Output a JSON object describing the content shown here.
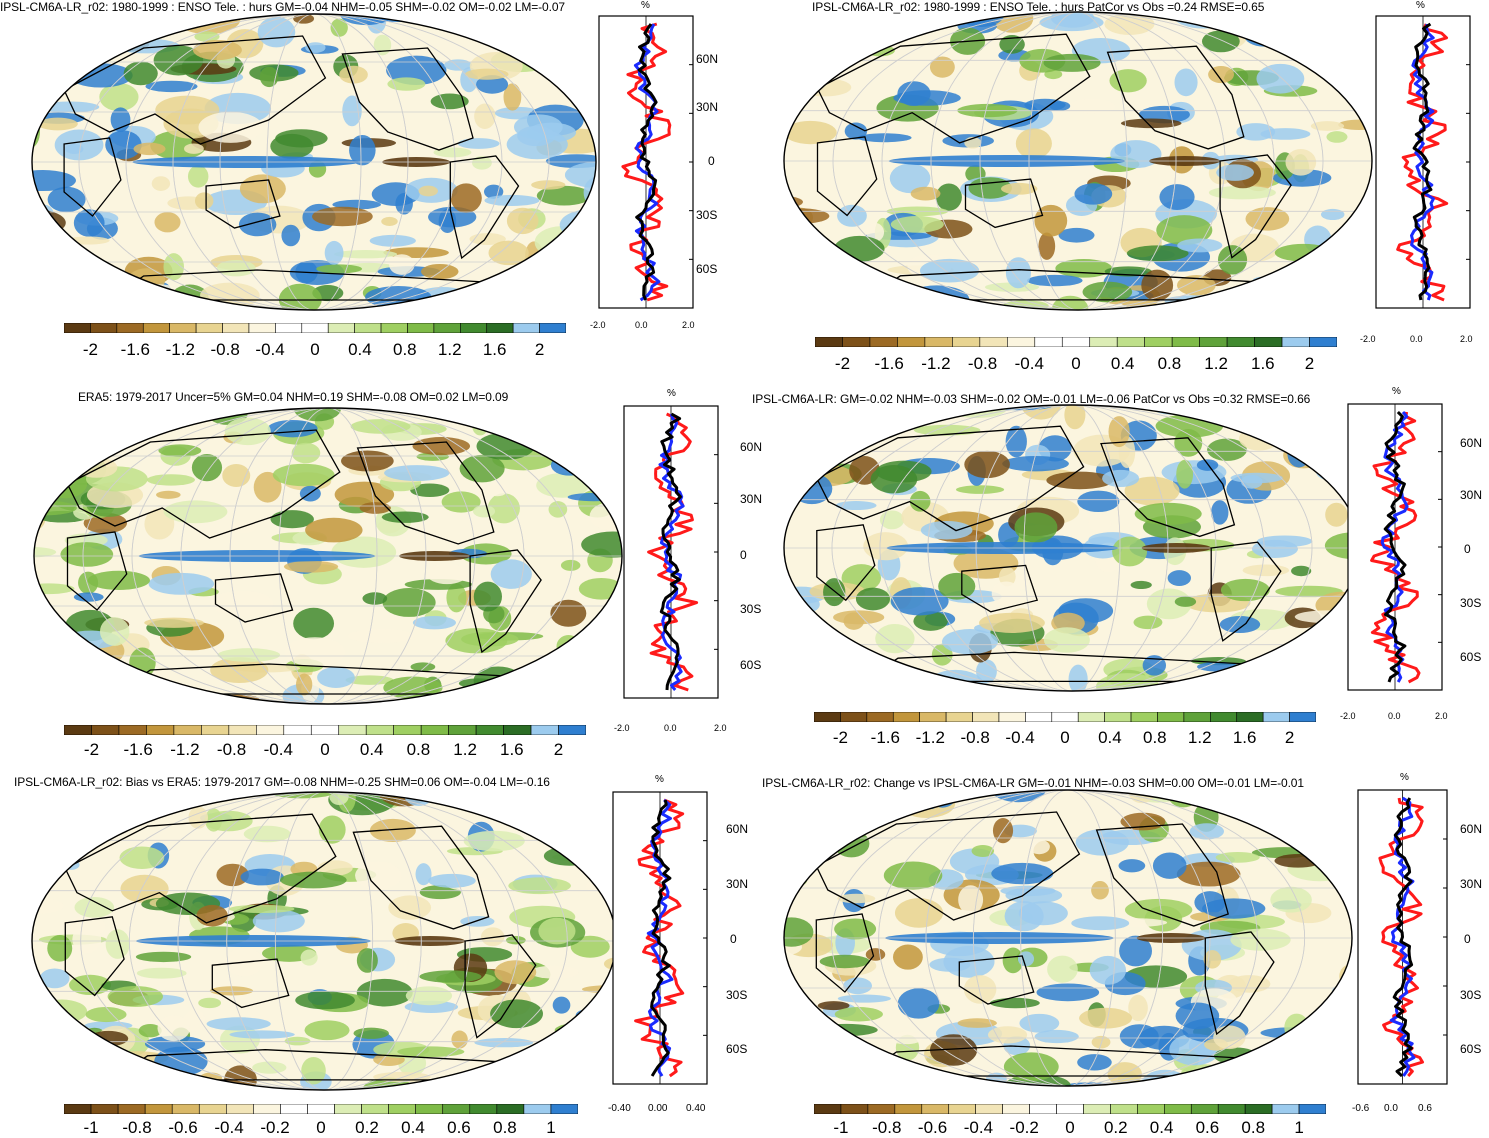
{
  "colorbar_colors": [
    "#5b3a12",
    "#7d5119",
    "#9c6a24",
    "#c2963c",
    "#d9b867",
    "#e8d491",
    "#f2e5b8",
    "#fbf5df",
    "#ffffff",
    "#ffffff",
    "#dcedb5",
    "#bfe08a",
    "#9fcf62",
    "#7fbb48",
    "#5fa23a",
    "#418a2f",
    "#2b6d25",
    "#9ccbee",
    "#2f7fd0"
  ],
  "labels_pct": [
    "-2",
    "-1.6",
    "-1.2",
    "-0.8",
    "-0.4",
    "0",
    "0.4",
    "0.8",
    "1.2",
    "1.6",
    "2"
  ],
  "labels_bias": [
    "-1",
    "-0.8",
    "-0.6",
    "-0.4",
    "-0.2",
    "0",
    "0.2",
    "0.4",
    "0.6",
    "0.8",
    "1"
  ],
  "profile_unit": "%",
  "panels": [
    {
      "title": "IPSL-CM6A-LR_r02: 1980-1999 : ENSO Tele. : hurs GM=-0.04 NHM=-0.05 SHM=-0.02 OM=-0.02 LM=-0.07",
      "lat_labels": [
        "60N",
        "30N",
        "0",
        "30S",
        "60S"
      ],
      "x_ticks": [
        "-2.0",
        "0.0",
        "2.0"
      ]
    },
    {
      "title": "IPSL-CM6A-LR_r02: 1980-1999 : ENSO Tele. : hurs PatCor vs Obs =0.24 RMSE=0.65",
      "lat_labels": [],
      "x_ticks": [
        "-2.0",
        "0.0",
        "2.0"
      ]
    },
    {
      "title": "ERA5: 1979-2017 Uncer=5% GM=0.04 NHM=0.19 SHM=-0.08 OM=0.02 LM=0.09",
      "lat_labels": [
        "60N",
        "30N",
        "0",
        "30S",
        "60S"
      ],
      "x_ticks": [
        "-2.0",
        "0.0",
        "2.0"
      ]
    },
    {
      "title": "IPSL-CM6A-LR: GM=-0.02 NHM=-0.03 SHM=-0.02 OM=-0.01 LM=-0.06 PatCor vs Obs =0.32 RMSE=0.66",
      "lat_labels": [
        "60N",
        "30N",
        "0",
        "30S",
        "60S"
      ],
      "x_ticks": [
        "-2.0",
        "0.0",
        "2.0"
      ]
    },
    {
      "title": "IPSL-CM6A-LR_r02: Bias vs ERA5: 1979-2017 GM=-0.08 NHM=-0.25 SHM=0.06 OM=-0.04 LM=-0.16",
      "lat_labels": [
        "60N",
        "30N",
        "0",
        "30S",
        "60S"
      ],
      "x_ticks": [
        "-0.40",
        "0.00",
        "0.40"
      ]
    },
    {
      "title": "IPSL-CM6A-LR_r02: Change vs IPSL-CM6A-LR GM=-0.01 NHM=-0.03 SHM=0.00 OM=-0.01 LM=-0.01",
      "lat_labels": [
        "60N",
        "30N",
        "0",
        "30S",
        "60S"
      ],
      "x_ticks": [
        "-0.6",
        "0.0",
        "0.6"
      ]
    }
  ]
}
